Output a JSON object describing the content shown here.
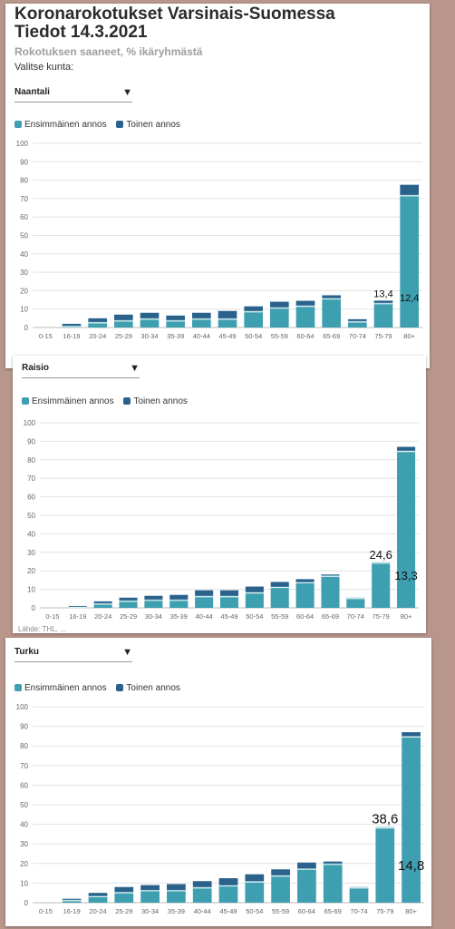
{
  "title_line1": "Koronarokotukset Varsinais-Suomessa",
  "title_line2": "Tiedot 14.3.2021",
  "subtitle": "Rokotuksen saaneet, % ikäryhmästä",
  "select_label": "Valitse kunta:",
  "legend": {
    "first": "Ensimmäinen annos",
    "second": "Toinen annos"
  },
  "colors": {
    "first": "#3d9fb0",
    "second": "#2a628c",
    "background": "#b8968c"
  },
  "icons": {
    "dropdown": "chevron-down-icon"
  },
  "footnote": "Lähde: THL, ...",
  "chart_data": [
    {
      "type": "bar",
      "stacked": true,
      "municipality": "Naantali",
      "categories": [
        "0-15",
        "16-19",
        "20-24",
        "25-29",
        "30-34",
        "35-39",
        "40-44",
        "45-49",
        "50-54",
        "55-59",
        "60-64",
        "65-69",
        "70-74",
        "75-79",
        "80+"
      ],
      "series": [
        {
          "name": "Ensimmäinen annos",
          "values": [
            0,
            1,
            3,
            4,
            5,
            4,
            5,
            5,
            9,
            11,
            12,
            16,
            3.5,
            13.4,
            72
          ]
        },
        {
          "name": "Toinen annos",
          "values": [
            0,
            1,
            2,
            3,
            3,
            2.5,
            3,
            4,
            2.5,
            3,
            2.5,
            1.5,
            1,
            1.2,
            5.5
          ]
        }
      ],
      "annotations": [
        {
          "category": "75-79",
          "text": "13,4"
        },
        {
          "category": "80+",
          "text": "12,4",
          "value": 12.4
        }
      ],
      "ylim": [
        0,
        100
      ],
      "yticks": [
        0,
        10,
        20,
        30,
        40,
        50,
        60,
        70,
        80,
        90,
        100
      ],
      "grid": true
    },
    {
      "type": "bar",
      "stacked": true,
      "municipality": "Raisio",
      "categories": [
        "0-15",
        "16-19",
        "20-24",
        "25-29",
        "30-34",
        "35-39",
        "40-44",
        "45-49",
        "50-54",
        "55-59",
        "60-64",
        "65-69",
        "70-74",
        "75-79",
        "80+"
      ],
      "series": [
        {
          "name": "Ensimmäinen annos",
          "values": [
            0,
            0.7,
            2.5,
            4,
            4.5,
            4.5,
            6.5,
            6.5,
            8.5,
            11.5,
            14,
            17.5,
            5.5,
            24.6,
            85
          ]
        },
        {
          "name": "Toinen annos",
          "values": [
            0,
            0.3,
            1,
            1.5,
            2,
            2.5,
            3,
            3,
            3,
            2.5,
            1.5,
            0.5,
            0,
            0,
            2
          ]
        }
      ],
      "annotations": [
        {
          "category": "75-79",
          "text": "24,6"
        },
        {
          "category": "80+",
          "text": "13,3",
          "value": 13.3
        }
      ],
      "ylim": [
        0,
        100
      ],
      "yticks": [
        0,
        10,
        20,
        30,
        40,
        50,
        60,
        70,
        80,
        90,
        100
      ],
      "grid": true
    },
    {
      "type": "bar",
      "stacked": true,
      "municipality": "Turku",
      "categories": [
        "0-15",
        "16-19",
        "20-24",
        "25-29",
        "30-34",
        "35-39",
        "40-44",
        "45-49",
        "50-54",
        "55-59",
        "60-64",
        "65-69",
        "70-74",
        "75-79",
        "80+"
      ],
      "series": [
        {
          "name": "Ensimmäinen annos",
          "values": [
            0,
            1.5,
            3.5,
            5.5,
            6.5,
            6.5,
            8,
            9,
            11,
            14,
            17.5,
            20,
            8,
            38.6,
            85
          ]
        },
        {
          "name": "Toinen annos",
          "values": [
            0,
            0.5,
            1.5,
            2.5,
            2.5,
            3,
            3,
            3.5,
            3.5,
            3,
            3,
            1,
            0,
            0,
            2
          ]
        }
      ],
      "annotations": [
        {
          "category": "75-79",
          "text": "38,6"
        },
        {
          "category": "80+",
          "text": "14,8",
          "value": 14.8
        }
      ],
      "ylim": [
        0,
        100
      ],
      "yticks": [
        0,
        10,
        20,
        30,
        40,
        50,
        60,
        70,
        80,
        90,
        100
      ],
      "grid": true
    }
  ]
}
